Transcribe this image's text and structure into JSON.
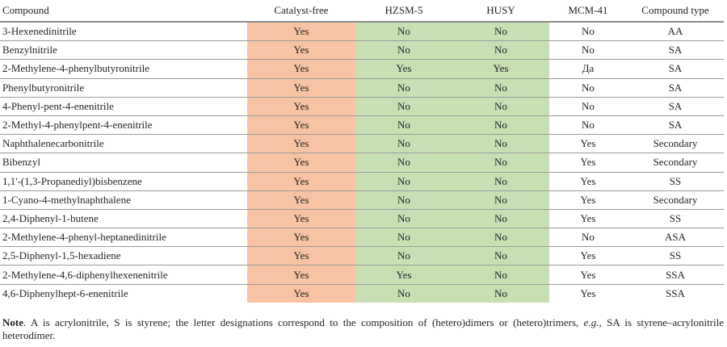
{
  "table": {
    "headers": [
      "Compound",
      "Catalyst-free",
      "HZSM-5",
      "HUSY",
      "MCM-41",
      "Compound type"
    ],
    "colors": {
      "catalyst_free_fill": "#f6c4a5",
      "zeolite_fill": "#c6e0b4"
    },
    "rows": [
      [
        "3-Hexenedinitrile",
        "Yes",
        "No",
        "No",
        "No",
        "AA"
      ],
      [
        "Benzylnitrile",
        "Yes",
        "No",
        "No",
        "No",
        "SA"
      ],
      [
        "2-Methylene-4-phenylbutyronitrile",
        "Yes",
        "Yes",
        "Yes",
        "Да",
        "SA"
      ],
      [
        "Phenylbutyronitrile",
        "Yes",
        "No",
        "No",
        "No",
        "SA"
      ],
      [
        "4-Phenyl-pent-4-enenitrile",
        "Yes",
        "No",
        "No",
        "No",
        "SA"
      ],
      [
        "2-Methyl-4-phenylpent-4-enenitrile",
        "Yes",
        "No",
        "No",
        "No",
        "SA"
      ],
      [
        "Naphthalenecarbonitrile",
        "Yes",
        "No",
        "No",
        "Yes",
        "Secondary"
      ],
      [
        "Bibenzyl",
        "Yes",
        "No",
        "No",
        "Yes",
        "Secondary"
      ],
      [
        "1,1'-(1,3-Propanediyl)bisbenzene",
        "Yes",
        "No",
        "No",
        "Yes",
        "SS"
      ],
      [
        "1-Cyano-4-methylnaphthalene",
        "Yes",
        "No",
        "No",
        "Yes",
        "Secondary"
      ],
      [
        "2,4-Diphenyl-1-butene",
        "Yes",
        "No",
        "No",
        "Yes",
        "SS"
      ],
      [
        "2-Methylene-4-phenyl-heptanedinitrile",
        "Yes",
        "No",
        "No",
        "No",
        "ASA"
      ],
      [
        "2,5-Diphenyl-1,5-hexadiene",
        "Yes",
        "No",
        "No",
        "Yes",
        "SS"
      ],
      [
        "2-Methylene-4,6-diphenylhexenenitrile",
        "Yes",
        "Yes",
        "No",
        "Yes",
        "SSA"
      ],
      [
        "4,6-Diphenylhept-6-enenitrile",
        "Yes",
        "No",
        "No",
        "Yes",
        "SSA"
      ]
    ]
  },
  "note": {
    "label": "Note",
    "text": ". A is acrylonitrile, S is styrene; the letter designations correspond to the composition of (hetero)dimers or (hetero)trimers, ",
    "eg": "e.g.",
    "text_end": ", SA is styrene–acrylonitrile heterodimer."
  }
}
